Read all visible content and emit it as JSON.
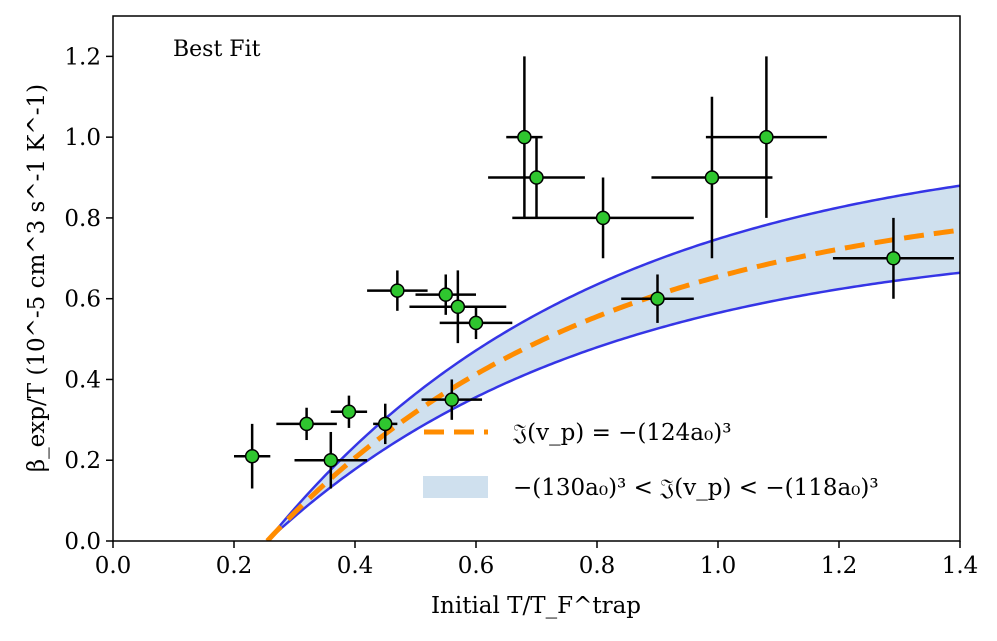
{
  "chart_data": {
    "type": "scatter",
    "title": "",
    "annotation": "Best Fit",
    "xlabel": "Initial T/T_F^trap",
    "ylabel": "β_exp/T (10^-5 cm^3 s^-1 K^-1)",
    "xlim": [
      0.0,
      1.4
    ],
    "ylim": [
      0.0,
      1.3
    ],
    "xticks": [
      "0.0",
      "0.2",
      "0.4",
      "0.6",
      "0.8",
      "1.0",
      "1.2",
      "1.4"
    ],
    "yticks": [
      "0.0",
      "0.2",
      "0.4",
      "0.6",
      "0.8",
      "1.0",
      "1.2"
    ],
    "grid": false,
    "legend_position": "lower-center",
    "series": [
      {
        "name": "data",
        "kind": "errorbar-scatter",
        "marker_color": "#2fc62f",
        "points": [
          {
            "x": 0.23,
            "y": 0.21,
            "xerr": 0.03,
            "yerr": 0.08
          },
          {
            "x": 0.32,
            "y": 0.29,
            "xerr": 0.05,
            "yerr": 0.04
          },
          {
            "x": 0.36,
            "y": 0.2,
            "xerr": 0.06,
            "yerr": 0.07
          },
          {
            "x": 0.39,
            "y": 0.32,
            "xerr": 0.03,
            "yerr": 0.04
          },
          {
            "x": 0.45,
            "y": 0.29,
            "xerr": 0.02,
            "yerr": 0.05
          },
          {
            "x": 0.47,
            "y": 0.62,
            "xerr": 0.05,
            "yerr": 0.05
          },
          {
            "x": 0.55,
            "y": 0.61,
            "xerr": 0.05,
            "yerr": 0.05
          },
          {
            "x": 0.56,
            "y": 0.35,
            "xerr": 0.05,
            "yerr": 0.05
          },
          {
            "x": 0.57,
            "y": 0.58,
            "xerr": 0.08,
            "yerr": 0.09
          },
          {
            "x": 0.6,
            "y": 0.54,
            "xerr": 0.06,
            "yerr": 0.04
          },
          {
            "x": 0.68,
            "y": 1.0,
            "xerr": 0.03,
            "yerr": 0.2
          },
          {
            "x": 0.7,
            "y": 0.9,
            "xerr": 0.08,
            "yerr": 0.1
          },
          {
            "x": 0.81,
            "y": 0.8,
            "xerr": 0.15,
            "yerr": 0.1
          },
          {
            "x": 0.9,
            "y": 0.6,
            "xerr": 0.06,
            "yerr": 0.06
          },
          {
            "x": 0.99,
            "y": 0.9,
            "xerr": 0.1,
            "yerr": 0.2
          },
          {
            "x": 1.08,
            "y": 1.0,
            "xerr": 0.1,
            "yerr": 0.2
          },
          {
            "x": 1.29,
            "y": 0.7,
            "xerr": 0.1,
            "yerr": 0.1
          }
        ]
      },
      {
        "name": "𝔍(v_p) = −(124a₀)³",
        "kind": "line",
        "style": "dashed",
        "color": "#ff8c00",
        "x0": 0.255,
        "asymptote": 0.875,
        "rate": 1.85
      },
      {
        "name": "−(130a₀)³ < 𝔍(v_p) < −(118a₀)³",
        "kind": "band",
        "fill": "#cfe0ee",
        "edge_color": "#3535e6",
        "x0": 0.255,
        "upper": {
          "asymptote": 1.0,
          "rate": 1.85
        },
        "lower": {
          "asymptote": 0.755,
          "rate": 1.85
        }
      }
    ],
    "legend": [
      {
        "label": "𝔍(v_p) = −(124a₀)³",
        "kind": "line"
      },
      {
        "label": "−(130a₀)³ < 𝔍(v_p) < −(118a₀)³",
        "kind": "band"
      }
    ]
  }
}
